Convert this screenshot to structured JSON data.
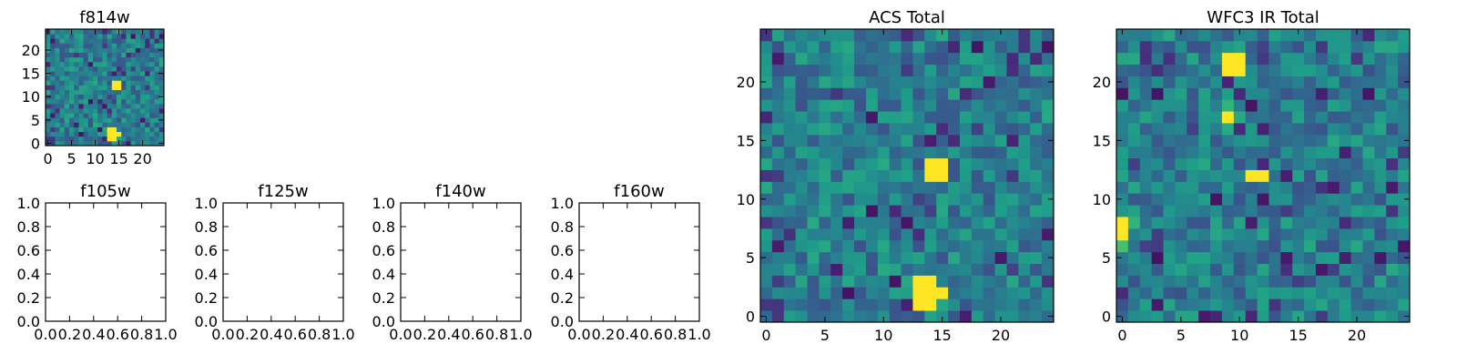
{
  "chart_data": [
    {
      "type": "heatmap",
      "title": "f814w",
      "xlim": [
        -0.5,
        24.5
      ],
      "ylim": [
        -0.5,
        24.5
      ],
      "xticks": [
        "0",
        "5",
        "10",
        "15",
        "20"
      ],
      "yticks": [
        "0",
        "5",
        "10",
        "15",
        "20"
      ],
      "colormap": "viridis",
      "grid": false,
      "peaks": [
        {
          "x": 14,
          "y": 12,
          "w": 2,
          "h": 2
        },
        {
          "x": 13,
          "y": 1,
          "w": 2,
          "h": 3
        },
        {
          "x": 15,
          "y": 2,
          "w": 1,
          "h": 1
        }
      ],
      "seed": 11
    },
    {
      "type": "heatmap",
      "title": "ACS Total",
      "xlim": [
        -0.5,
        24.5
      ],
      "ylim": [
        -0.5,
        24.5
      ],
      "xticks": [
        "0",
        "5",
        "10",
        "15",
        "20"
      ],
      "yticks": [
        "0",
        "5",
        "10",
        "15",
        "20"
      ],
      "colormap": "viridis",
      "grid": false,
      "peaks": [
        {
          "x": 14,
          "y": 12,
          "w": 2,
          "h": 2
        },
        {
          "x": 13,
          "y": 1,
          "w": 2,
          "h": 3
        },
        {
          "x": 15,
          "y": 2,
          "w": 1,
          "h": 1
        }
      ],
      "seed": 11
    },
    {
      "type": "heatmap",
      "title": "WFC3 IR Total",
      "xlim": [
        -0.5,
        24.5
      ],
      "ylim": [
        -0.5,
        24.5
      ],
      "xticks": [
        "0",
        "5",
        "10",
        "15",
        "20"
      ],
      "yticks": [
        "0",
        "5",
        "10",
        "15",
        "20"
      ],
      "colormap": "viridis",
      "grid": false,
      "peaks": [
        {
          "x": 9,
          "y": 21,
          "w": 2,
          "h": 2
        },
        {
          "x": 9,
          "y": 17,
          "w": 1,
          "h": 1
        },
        {
          "x": 11,
          "y": 12,
          "w": 2,
          "h": 1
        },
        {
          "x": 0,
          "y": 7,
          "w": 1,
          "h": 2
        }
      ],
      "mid": [
        {
          "x": 9,
          "y": 16,
          "v": 0.6
        },
        {
          "x": 10,
          "y": 17,
          "v": 0.6
        },
        {
          "x": 9,
          "y": 18,
          "v": 0.65
        },
        {
          "x": 1,
          "y": 8,
          "v": 0.65
        },
        {
          "x": 0,
          "y": 6,
          "v": 0.7
        }
      ],
      "seed": 29
    },
    {
      "type": "scatter",
      "title": "f105w",
      "xlim": [
        0,
        1
      ],
      "ylim": [
        0,
        1
      ],
      "xticks": [
        "0.0",
        "0.2",
        "0.4",
        "0.6",
        "0.8",
        "1.0"
      ],
      "yticks": [
        "0.0",
        "0.2",
        "0.4",
        "0.6",
        "0.8",
        "1.0"
      ],
      "series": []
    },
    {
      "type": "scatter",
      "title": "f125w",
      "xlim": [
        0,
        1
      ],
      "ylim": [
        0,
        1
      ],
      "xticks": [
        "0.0",
        "0.2",
        "0.4",
        "0.6",
        "0.8",
        "1.0"
      ],
      "yticks": [
        "0.0",
        "0.2",
        "0.4",
        "0.6",
        "0.8",
        "1.0"
      ],
      "series": []
    },
    {
      "type": "scatter",
      "title": "f140w",
      "xlim": [
        0,
        1
      ],
      "ylim": [
        0,
        1
      ],
      "xticks": [
        "0.0",
        "0.2",
        "0.4",
        "0.6",
        "0.8",
        "1.0"
      ],
      "yticks": [
        "0.0",
        "0.2",
        "0.4",
        "0.6",
        "0.8",
        "1.0"
      ],
      "series": []
    },
    {
      "type": "scatter",
      "title": "f160w",
      "xlim": [
        0,
        1
      ],
      "ylim": [
        0,
        1
      ],
      "xticks": [
        "0.0",
        "0.2",
        "0.4",
        "0.6",
        "0.8",
        "1.0"
      ],
      "yticks": [
        "0.0",
        "0.2",
        "0.4",
        "0.6",
        "0.8",
        "1.0"
      ],
      "series": []
    }
  ]
}
